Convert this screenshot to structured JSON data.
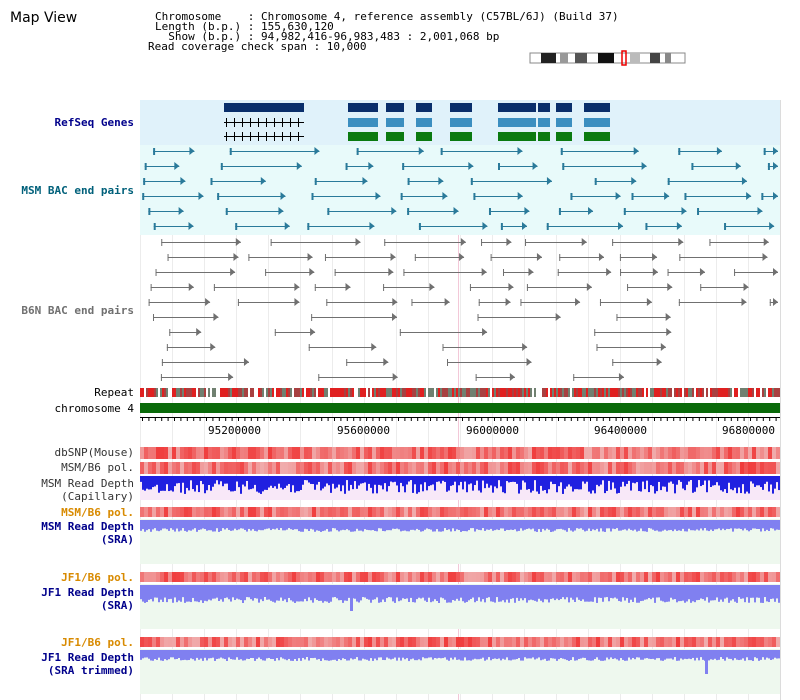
{
  "title": "Map View",
  "header": {
    "line1": "Chromosome    : Chromosome 4, reference assembly (C57BL/6J) (Build 37)",
    "line2": "Length (b.p.) : 155,630,120",
    "line3": "  Show (b.p.) : 94,982,416-96,983,483 : 2,001,068 bp",
    "line4": "Read coverage check span : 10,000"
  },
  "tracks": {
    "refseq": "RefSeq Genes",
    "msm_bac": "MSM BAC end pairs",
    "b6n_bac": "B6N BAC end pairs",
    "repeat": "Repeat",
    "chromosome": "chromosome 4",
    "dbsnp": "dbSNP(Mouse)",
    "msm_b6_pol1": "MSM/B6 pol.",
    "msm_read_cap_1": "MSM Read Depth",
    "msm_read_cap_2": "(Capillary)",
    "msm_b6_pol2": "MSM/B6 pol.",
    "msm_read_sra_1": "MSM Read Depth",
    "msm_read_sra_2": "(SRA)",
    "jf1_b6_pol1": "JF1/B6 pol.",
    "jf1_read_sra_1": "JF1 Read Depth",
    "jf1_read_sra_2": "(SRA)",
    "jf1_b6_pol2": "JF1/B6 pol.",
    "jf1_read_trim_1": "JF1 Read Depth",
    "jf1_read_trim_2": "(SRA trimmed)"
  },
  "axis_ticks": [
    "95200000",
    "95600000",
    "96000000",
    "96400000",
    "96800000"
  ],
  "colors": {
    "refseq_bg": "#e0f2fa",
    "msm_bac_bg": "#e8fafa",
    "gene_dark": "#0a2f6b",
    "gene_mid": "#3b8fc0",
    "gene_green": "#0a7a10",
    "bac_teal": "#2a7a9a",
    "bac_gray": "#707070",
    "label_blue": "#00008b",
    "label_teal": "#00607a",
    "label_orange": "#d88a00",
    "chrom_green": "#0a6a0a",
    "read_blue": "#2020e0",
    "read_light": "#8080f0"
  }
}
